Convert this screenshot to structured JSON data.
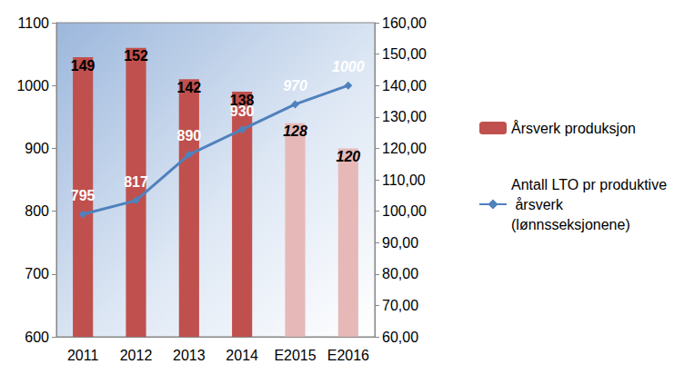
{
  "chart_data": {
    "type": "bar",
    "categories": [
      "2011",
      "2012",
      "2013",
      "2014",
      "E2015",
      "E2016"
    ],
    "ylim": [
      600,
      1100
    ],
    "yticks": [
      600,
      700,
      800,
      900,
      1000,
      1100
    ],
    "y2lim": [
      60,
      160
    ],
    "y2ticks": [
      {
        "value": 60,
        "label": "60,00"
      },
      {
        "value": 70,
        "label": "70,00"
      },
      {
        "value": 80,
        "label": "80,00"
      },
      {
        "value": 90,
        "label": "90,00"
      },
      {
        "value": 100,
        "label": "100,00"
      },
      {
        "value": 110,
        "label": "110,00"
      },
      {
        "value": 120,
        "label": "120,00"
      },
      {
        "value": 130,
        "label": "130,00"
      },
      {
        "value": 140,
        "label": "140,00"
      },
      {
        "value": 150,
        "label": "150,00"
      },
      {
        "value": 160,
        "label": "160,00"
      }
    ],
    "grid": false,
    "legend": "right",
    "data_labels": true,
    "series": [
      {
        "name": "Årsverk produksjon",
        "type": "bar",
        "axis": "y2",
        "color": "#c0504d",
        "colors": [
          "#c0504d",
          "#c0504d",
          "#c0504d",
          "#c0504d",
          "#e6b9b8",
          "#e6b9b8"
        ],
        "values": [
          149,
          152,
          142,
          138,
          128,
          120
        ]
      },
      {
        "name": "Antall LTO pr produktive årsverk (lønnsseksjonene)",
        "type": "line",
        "color": "#4f81bd",
        "marker": "diamond",
        "values": [
          795,
          817,
          890,
          930,
          970,
          1000
        ]
      }
    ]
  }
}
